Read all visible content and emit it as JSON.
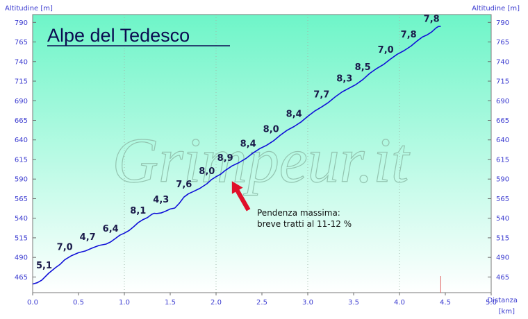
{
  "chart_data": {
    "type": "line",
    "title": "Alpe del Tedesco",
    "watermark": "Grimpeur.it",
    "ylabel_left": "Altitudine [m]",
    "ylabel_right": "Altitudine [m]",
    "xlabel": "Distanza",
    "xunit": "[km]",
    "xlim": [
      0,
      5
    ],
    "ylim": [
      445,
      800
    ],
    "xticks": [
      "0.0",
      "0.5",
      "1.0",
      "1.5",
      "2.0",
      "2.5",
      "3.0",
      "3.5",
      "4.0",
      "4.5",
      "5.0"
    ],
    "yticks": [
      "465",
      "490",
      "515",
      "540",
      "565",
      "590",
      "615",
      "640",
      "665",
      "690",
      "715",
      "740",
      "765",
      "790"
    ],
    "x": [
      0,
      0.1,
      0.25,
      0.35,
      0.5,
      0.65,
      0.8,
      0.9,
      1.0,
      1.1,
      1.2,
      1.3,
      1.35,
      1.45,
      1.55,
      1.65,
      1.75,
      1.9,
      2.0,
      2.1,
      2.25,
      2.4,
      2.55,
      2.7,
      2.85,
      3.0,
      3.15,
      3.3,
      3.45,
      3.6,
      3.75,
      3.9,
      4.05,
      4.2,
      4.3,
      4.4,
      4.45
    ],
    "y": [
      456,
      461,
      477,
      487,
      496,
      502,
      507,
      514,
      521,
      529,
      538,
      545,
      546,
      549,
      553,
      567,
      574,
      584,
      593,
      601,
      611,
      623,
      633,
      646,
      657,
      670,
      682,
      695,
      706,
      717,
      731,
      743,
      754,
      767,
      774,
      783,
      785
    ],
    "segment_labels": [
      {
        "x": 0.125,
        "label": "5,1"
      },
      {
        "x": 0.35,
        "label": "7,0"
      },
      {
        "x": 0.6,
        "label": "4,7"
      },
      {
        "x": 0.85,
        "label": "6,4"
      },
      {
        "x": 1.15,
        "label": "8,1"
      },
      {
        "x": 1.4,
        "label": "4,3"
      },
      {
        "x": 1.65,
        "label": "7,6"
      },
      {
        "x": 1.9,
        "label": "8,0"
      },
      {
        "x": 2.1,
        "label": "8,9"
      },
      {
        "x": 2.35,
        "label": "8,4"
      },
      {
        "x": 2.6,
        "label": "8,0"
      },
      {
        "x": 2.85,
        "label": "8,4"
      },
      {
        "x": 3.15,
        "label": "7,7"
      },
      {
        "x": 3.4,
        "label": "8,3"
      },
      {
        "x": 3.6,
        "label": "8,5"
      },
      {
        "x": 3.85,
        "label": "7,0"
      },
      {
        "x": 4.1,
        "label": "7,8"
      },
      {
        "x": 4.35,
        "label": "7,8"
      }
    ],
    "annotation": {
      "lines": [
        "Pendenza massima:",
        "breve tratti al 11-12 %"
      ],
      "arrow_to": {
        "x": 2.15,
        "y": 590
      },
      "arrow_color": "#e0102a"
    },
    "end_marker_x": 4.45,
    "colors": {
      "line": "#1010d8",
      "tick_text": "#3a3ad0",
      "label_text": "#1a1a4a",
      "bg_top": "#6ef5c8",
      "bg_bottom": "#ffffff",
      "end_marker": "#e06060"
    },
    "grid": true,
    "legend": "none"
  }
}
